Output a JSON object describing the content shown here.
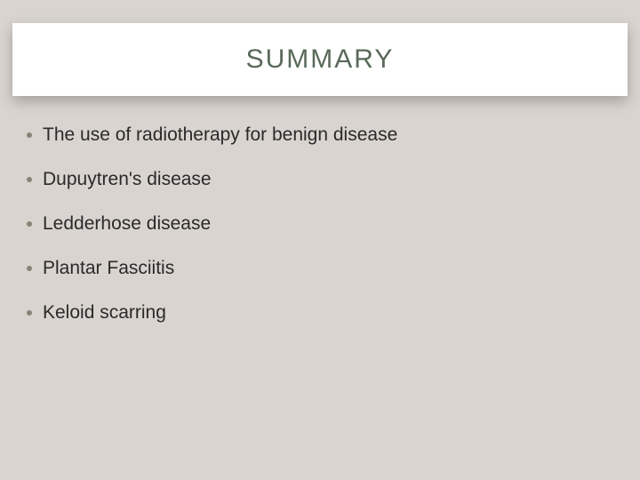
{
  "slide": {
    "background_color": "#d9d4cf",
    "title_band": {
      "bg": "#ffffff",
      "shadow": "0 6px 14px rgba(0,0,0,0.25)"
    },
    "title": {
      "text": "SUMMARY",
      "color": "#5a6a5a",
      "fontsize": 30,
      "letter_spacing": 2
    },
    "bullets": {
      "dot_color": "#8a8276",
      "text_color": "#2a2a2a",
      "fontsize": 21,
      "items": [
        "The use of radiotherapy for benign disease",
        "Dupuytren's disease",
        "Ledderhose disease",
        "Plantar Fasciitis",
        "Keloid scarring"
      ]
    }
  }
}
